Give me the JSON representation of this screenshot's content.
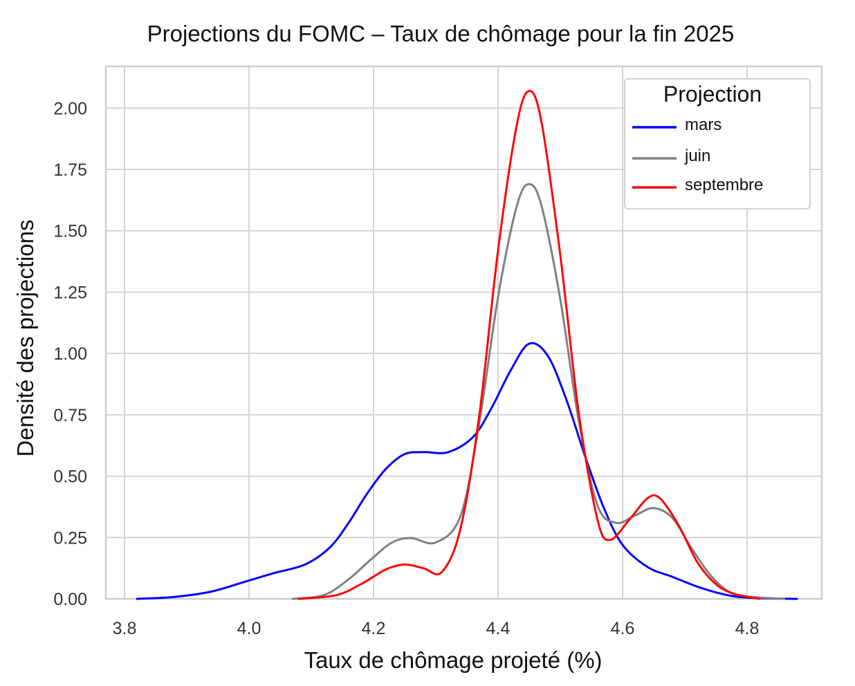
{
  "chart_data": {
    "type": "line",
    "title": "Projections du FOMC – Taux de chômage pour la fin 2025",
    "xlabel": "Taux de chômage projeté (%)",
    "ylabel": "Densité des projections",
    "xlim": [
      3.77,
      4.92
    ],
    "ylim": [
      0.0,
      2.17
    ],
    "x_ticks": [
      "3.8",
      "4.0",
      "4.2",
      "4.4",
      "4.6",
      "4.8"
    ],
    "y_ticks": [
      "0.00",
      "0.25",
      "0.50",
      "0.75",
      "1.00",
      "1.25",
      "1.50",
      "1.75",
      "2.00"
    ],
    "grid": true,
    "legend": {
      "title": "Projection",
      "placement": "top-right"
    },
    "series": [
      {
        "name": "mars",
        "color": "#0000ff",
        "points": [
          [
            3.82,
            0.0
          ],
          [
            3.88,
            0.008
          ],
          [
            3.94,
            0.03
          ],
          [
            4.0,
            0.075
          ],
          [
            4.04,
            0.105
          ],
          [
            4.09,
            0.14
          ],
          [
            4.13,
            0.21
          ],
          [
            4.16,
            0.31
          ],
          [
            4.19,
            0.43
          ],
          [
            4.22,
            0.53
          ],
          [
            4.25,
            0.59
          ],
          [
            4.28,
            0.598
          ],
          [
            4.32,
            0.598
          ],
          [
            4.36,
            0.66
          ],
          [
            4.39,
            0.78
          ],
          [
            4.42,
            0.93
          ],
          [
            4.45,
            1.04
          ],
          [
            4.48,
            0.99
          ],
          [
            4.51,
            0.81
          ],
          [
            4.54,
            0.58
          ],
          [
            4.57,
            0.37
          ],
          [
            4.6,
            0.22
          ],
          [
            4.64,
            0.13
          ],
          [
            4.68,
            0.09
          ],
          [
            4.72,
            0.05
          ],
          [
            4.76,
            0.02
          ],
          [
            4.8,
            0.005
          ],
          [
            4.88,
            0.0
          ]
        ]
      },
      {
        "name": "juin",
        "color": "#808080",
        "points": [
          [
            4.07,
            0.0
          ],
          [
            4.12,
            0.015
          ],
          [
            4.16,
            0.08
          ],
          [
            4.2,
            0.17
          ],
          [
            4.23,
            0.23
          ],
          [
            4.26,
            0.248
          ],
          [
            4.3,
            0.23
          ],
          [
            4.34,
            0.34
          ],
          [
            4.37,
            0.72
          ],
          [
            4.4,
            1.23
          ],
          [
            4.43,
            1.6
          ],
          [
            4.45,
            1.69
          ],
          [
            4.47,
            1.6
          ],
          [
            4.5,
            1.22
          ],
          [
            4.53,
            0.72
          ],
          [
            4.56,
            0.38
          ],
          [
            4.59,
            0.31
          ],
          [
            4.62,
            0.34
          ],
          [
            4.65,
            0.37
          ],
          [
            4.68,
            0.33
          ],
          [
            4.71,
            0.21
          ],
          [
            4.74,
            0.1
          ],
          [
            4.77,
            0.03
          ],
          [
            4.8,
            0.01
          ],
          [
            4.86,
            0.0
          ]
        ]
      },
      {
        "name": "septembre",
        "color": "#ff0000",
        "points": [
          [
            4.08,
            0.0
          ],
          [
            4.14,
            0.015
          ],
          [
            4.18,
            0.06
          ],
          [
            4.22,
            0.12
          ],
          [
            4.25,
            0.14
          ],
          [
            4.28,
            0.125
          ],
          [
            4.31,
            0.11
          ],
          [
            4.34,
            0.29
          ],
          [
            4.37,
            0.75
          ],
          [
            4.4,
            1.42
          ],
          [
            4.43,
            1.93
          ],
          [
            4.45,
            2.07
          ],
          [
            4.47,
            1.94
          ],
          [
            4.5,
            1.4
          ],
          [
            4.53,
            0.75
          ],
          [
            4.56,
            0.32
          ],
          [
            4.58,
            0.24
          ],
          [
            4.61,
            0.32
          ],
          [
            4.64,
            0.41
          ],
          [
            4.66,
            0.41
          ],
          [
            4.69,
            0.3
          ],
          [
            4.72,
            0.15
          ],
          [
            4.75,
            0.06
          ],
          [
            4.78,
            0.02
          ],
          [
            4.82,
            0.0
          ]
        ]
      }
    ]
  }
}
